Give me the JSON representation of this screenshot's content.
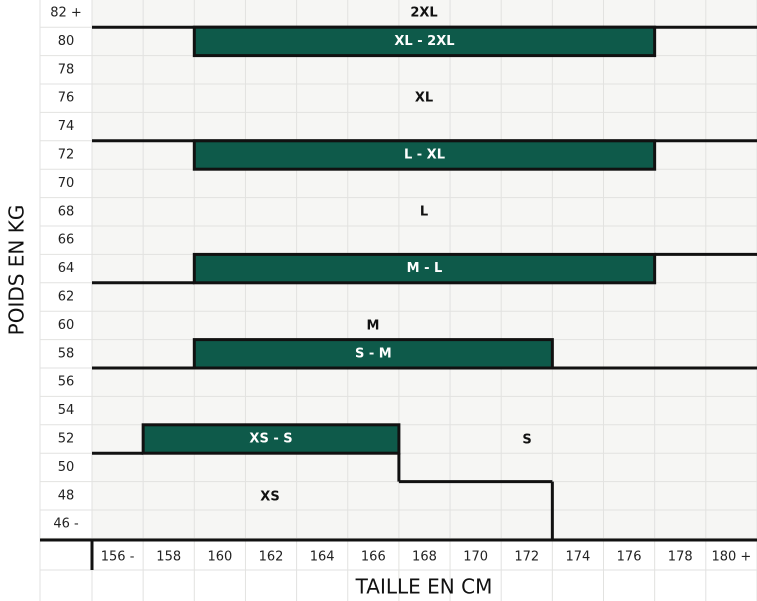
{
  "y_axis": {
    "title": "POIDS EN KG",
    "ticks": [
      "82 +",
      "80",
      "78",
      "76",
      "74",
      "72",
      "70",
      "68",
      "66",
      "64",
      "62",
      "60",
      "58",
      "56",
      "54",
      "52",
      "50",
      "48",
      "46 -"
    ]
  },
  "x_axis": {
    "title": "TAILLE EN CM",
    "ticks": [
      "156 -",
      "158",
      "160",
      "162",
      "164",
      "166",
      "168",
      "170",
      "172",
      "174",
      "176",
      "178",
      "180 +"
    ]
  },
  "zones": [
    {
      "label": "2XL"
    },
    {
      "label": "XL"
    },
    {
      "label": "L"
    },
    {
      "label": "M"
    },
    {
      "label": "S"
    },
    {
      "label": "XS"
    }
  ],
  "bands": [
    {
      "label": "XL - 2XL"
    },
    {
      "label": "L - XL"
    },
    {
      "label": "M - L"
    },
    {
      "label": "S - M"
    },
    {
      "label": "XS - S"
    }
  ]
}
